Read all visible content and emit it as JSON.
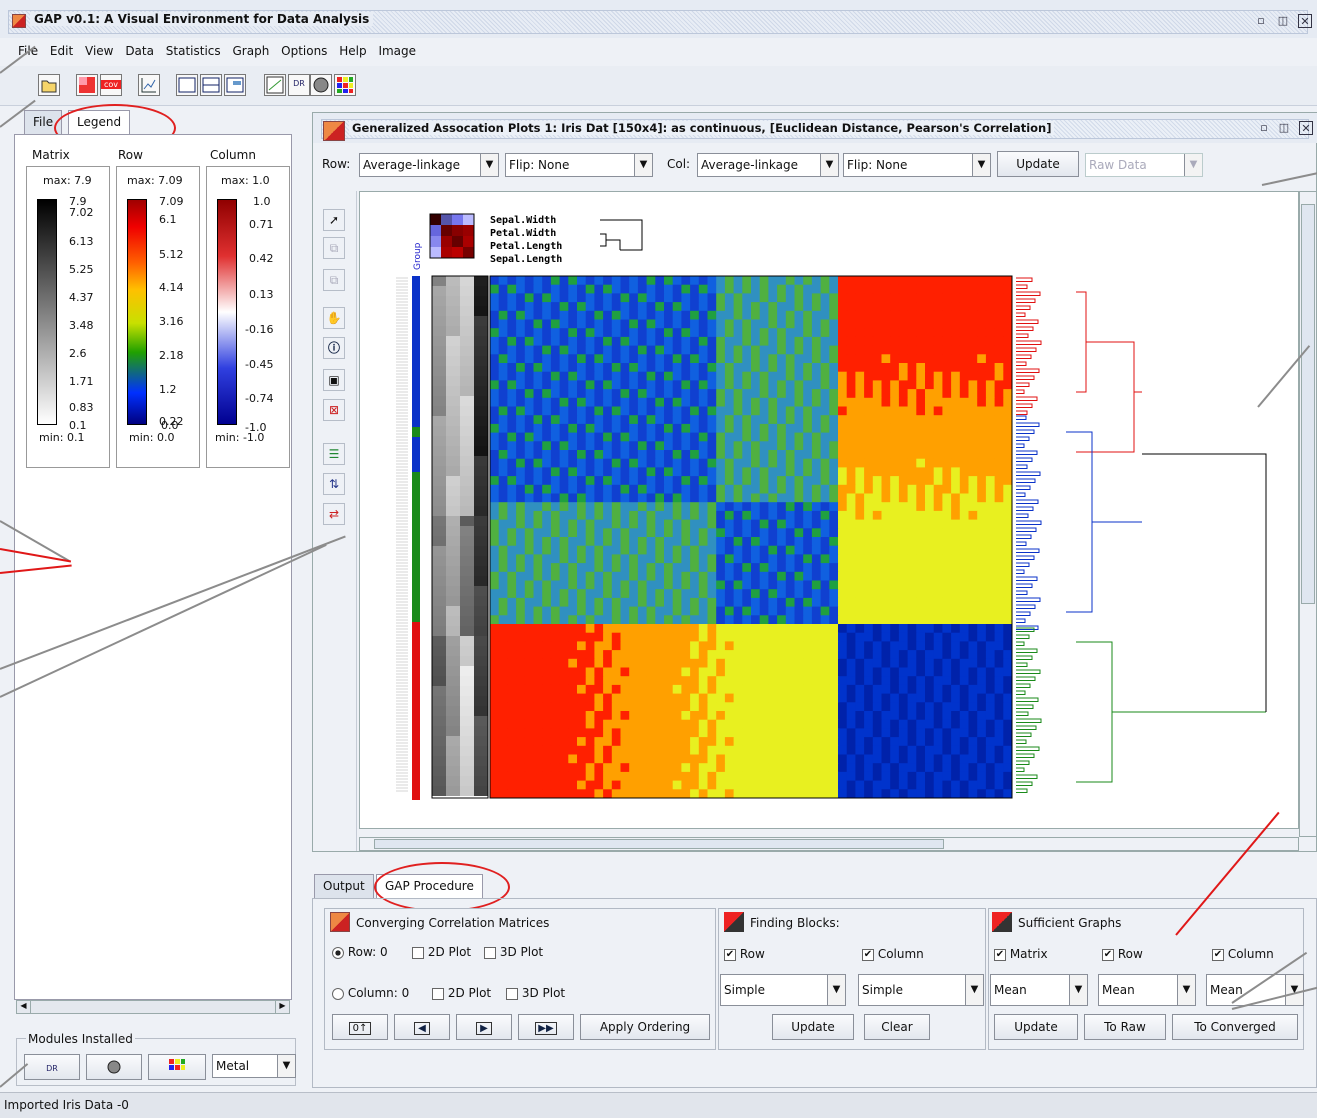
{
  "window": {
    "title": "GAP v0.1: A Visual Environment for Data Analysis",
    "controls": [
      "minimize-icon",
      "maximize-icon",
      "close-icon"
    ]
  },
  "menu": [
    "File",
    "Edit",
    "View",
    "Data",
    "Statistics",
    "Graph",
    "Options",
    "Help",
    "Image"
  ],
  "toolbar": {
    "icons": [
      "open-folder-icon",
      "correlation-matrix-icon",
      "cov-icon",
      "scatter-plot-icon",
      "layout-single-icon",
      "layout-split-icon",
      "layout-panel-icon",
      "plot-icon",
      "dr-icon",
      "sphere-icon",
      "heatmap-icon"
    ],
    "cov_label": "cov"
  },
  "left_panel": {
    "tabs": [
      "File",
      "Legend"
    ],
    "active_tab": "Legend",
    "legends": [
      {
        "title": "Matrix",
        "max": "max: 7.9",
        "min": "min: 0.1",
        "ticks": [
          "7.9",
          "7.02",
          "6.13",
          "5.25",
          "4.37",
          "3.48",
          "2.6",
          "1.71",
          "0.83",
          "0.1"
        ]
      },
      {
        "title": "Row",
        "max": "max: 7.09",
        "min": "min: 0.0",
        "ticks": [
          "7.09",
          "6.1",
          "5.12",
          "4.14",
          "3.16",
          "2.18",
          "1.2",
          "0.22",
          "0.0"
        ]
      },
      {
        "title": "Column",
        "max": "max: 1.0",
        "min": "min: -1.0",
        "ticks": [
          "1.0",
          "0.71",
          "0.42",
          "0.13",
          "-0.16",
          "-0.45",
          "-0.74",
          "-1.0"
        ]
      }
    ],
    "modules_title": "Modules Installed",
    "theme_value": "Metal"
  },
  "gap_window": {
    "title": "Generalized Assocation Plots 1: Iris Dat [150x4]: as continuous, [Euclidean Distance, Pearson's Correlation]",
    "row_label": "Row:",
    "row_linkage": "Average-linkage",
    "row_flip": "Flip: None",
    "col_label": "Col:",
    "col_linkage": "Average-linkage",
    "col_flip": "Flip: None",
    "update_label": "Update",
    "raw_data": "Raw Data",
    "variables": [
      "Sepal.Width",
      "Petal.Width",
      "Petal.Length",
      "Sepal.Length"
    ],
    "group_label": "Group",
    "tools": [
      "pointer-icon",
      "copy-icon",
      "paste-icon",
      "hand-icon",
      "info-icon",
      "select-icon",
      "deselect-icon",
      "sort-icon",
      "reorder-icon",
      "flip-icon"
    ]
  },
  "bottom_tabs": [
    "Output",
    "GAP Procedure"
  ],
  "converging": {
    "title": "Converging Correlation Matrices",
    "row_label": "Row:  0",
    "col_label": "Column:  0",
    "plot2d": "2D Plot",
    "plot3d": "3D Plot",
    "apply": "Apply Ordering"
  },
  "finding_blocks": {
    "title": "Finding Blocks:",
    "row": "Row",
    "column": "Column",
    "row_method": "Simple",
    "col_method": "Simple",
    "update": "Update",
    "clear": "Clear"
  },
  "sufficient": {
    "title": "Sufficient Graphs",
    "matrix": "Matrix",
    "row": "Row",
    "column": "Column",
    "m1": "Mean",
    "m2": "Mean",
    "m3": "Mean",
    "update": "Update",
    "to_raw": "To Raw",
    "to_converged": "To Converged"
  },
  "status": "Imported Iris Data -0",
  "colors": {
    "red_annotation": "#e01818",
    "blue": "#0a32c8",
    "green": "#1a8a1a",
    "red": "#e01010"
  }
}
